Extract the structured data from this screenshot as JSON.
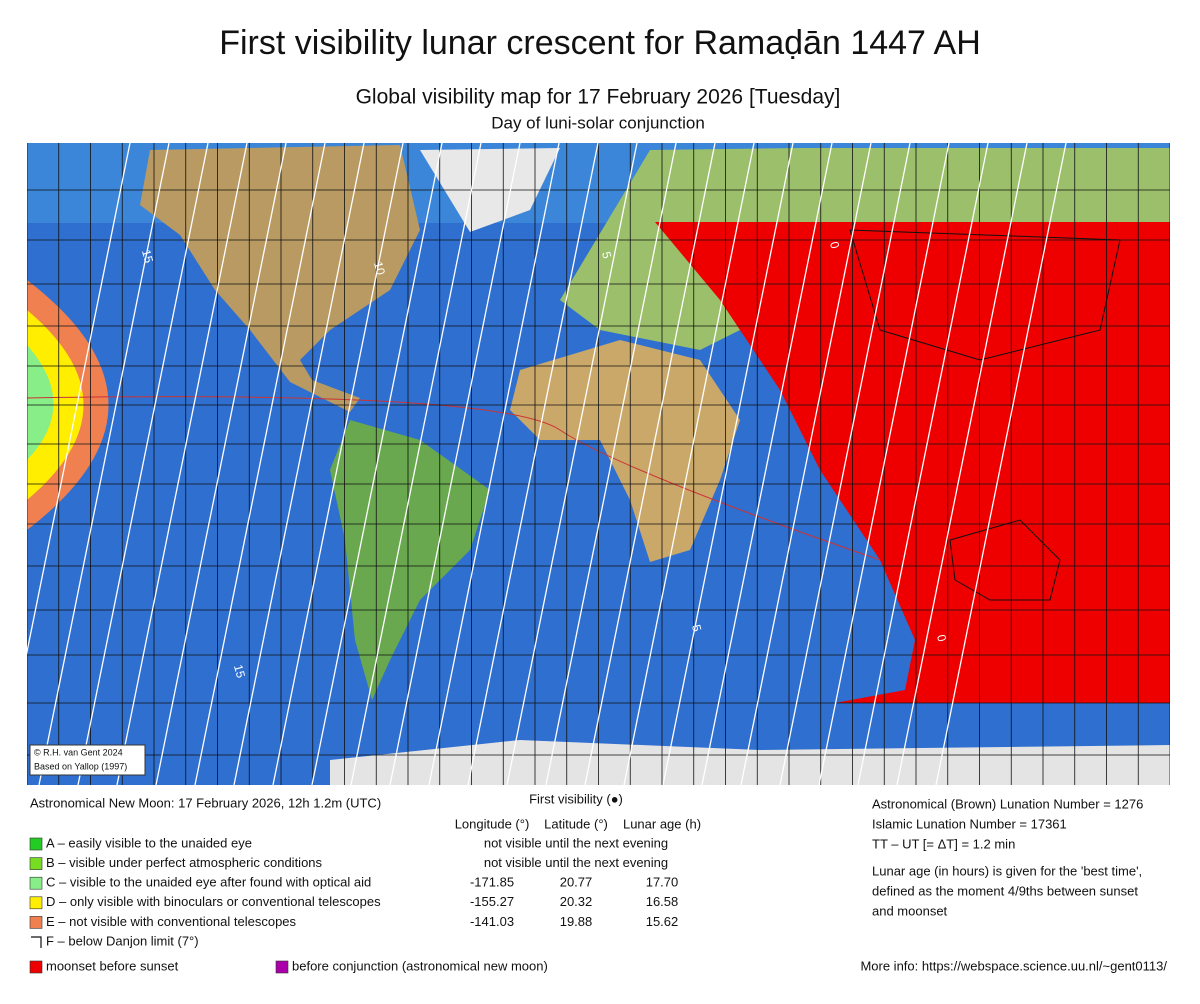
{
  "header": {
    "title": "First visibility lunar crescent for Ramaḍān 1447 AH",
    "subtitle": "Global visibility map for 17 February 2026 [Tuesday]",
    "note": "Day of luni-solar conjunction"
  },
  "map": {
    "contour_labels": [
      "15",
      "10",
      "5",
      "0",
      "15",
      "5",
      "0"
    ],
    "credit": [
      "© R.H. van Gent 2024",
      "Based on Yallop (1997)"
    ]
  },
  "new_moon": "Astronomical New Moon: 17 February 2026, 12h 1.2m (UTC)",
  "first_visibility": {
    "title": "First visibility (●)",
    "columns": [
      "Longitude (°)",
      "Latitude (°)",
      "Lunar age (h)"
    ]
  },
  "legend": [
    {
      "label": "A – easily visible to the unaided eye",
      "color": "#22cc22",
      "note": "not visible until the next evening"
    },
    {
      "label": "B – visible under perfect atmospheric conditions",
      "color": "#77dd22",
      "note": "not visible until the next evening"
    },
    {
      "label": "C – visible to the unaided eye after found with optical aid",
      "color": "#88ee88",
      "cells": [
        "-171.85",
        "20.77",
        "17.70"
      ]
    },
    {
      "label": "D – only visible with binoculars or conventional telescopes",
      "color": "#ffee00",
      "cells": [
        "-155.27",
        "20.32",
        "16.58"
      ]
    },
    {
      "label": "E – not visible with conventional telescopes",
      "color": "#f08050",
      "cells": [
        "-141.03",
        "19.88",
        "15.62"
      ]
    },
    {
      "label": "F – below Danjon limit (7°)"
    }
  ],
  "footer_legend": [
    {
      "label": "moonset before sunset",
      "color": "#ee0000"
    },
    {
      "label": "before conjunction (astronomical new moon)",
      "color": "#aa00aa"
    }
  ],
  "info": [
    "Astronomical (Brown) Lunation Number = 1276",
    "Islamic Lunation Number = 17361",
    "TT – UT [= ΔT] = 1.2 min",
    "Lunar age (in hours) is given for the 'best time',",
    "defined as the moment 4/9ths between sunset",
    "and moonset"
  ],
  "more_info": "More info: https://webspace.science.uu.nl/~gent0113/"
}
